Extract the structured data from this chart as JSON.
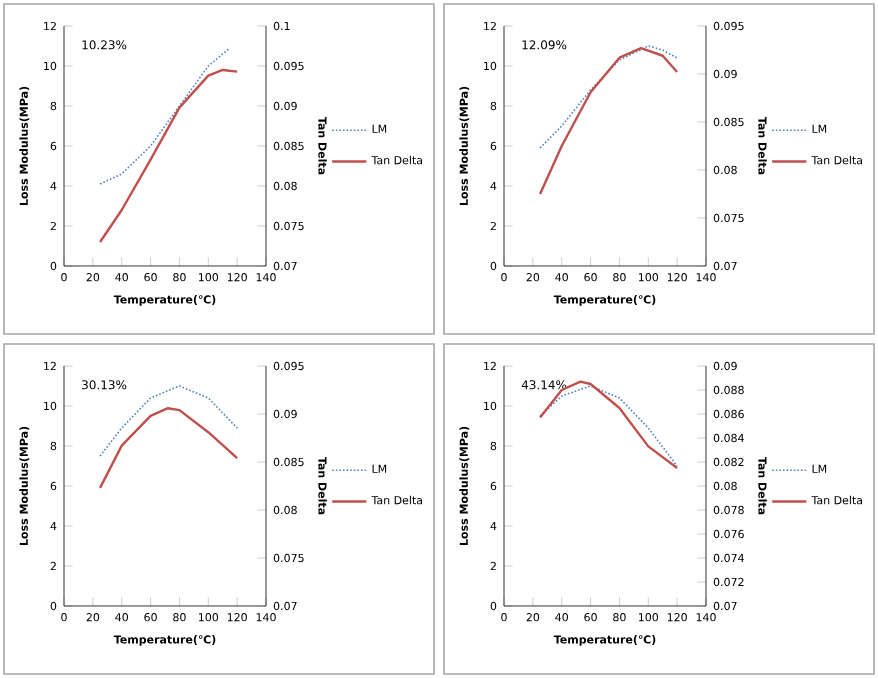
{
  "chart_data": [
    {
      "type": "line",
      "xlabel": "Temperature(℃)",
      "ylabel": "Loss Modulus(MPa)",
      "y2label": "Tan Delta",
      "annotations": [
        "10.23%"
      ],
      "xlim": [
        0,
        140
      ],
      "xticks": [
        0,
        20,
        40,
        60,
        80,
        100,
        120,
        140
      ],
      "ylim": [
        0,
        12
      ],
      "yticks": [
        0,
        2,
        4,
        6,
        8,
        10,
        12
      ],
      "y2lim": [
        0.07,
        0.1
      ],
      "y2ticks": [
        0.07,
        0.075,
        0.08,
        0.085,
        0.09,
        0.095,
        0.1
      ],
      "legend": "right",
      "series": [
        {
          "name": "LM",
          "color": "#4f81bd",
          "line_style": "dotted",
          "x": [
            25,
            40,
            60,
            80,
            100,
            115
          ],
          "values": [
            4.1,
            4.6,
            6.0,
            8.0,
            10.0,
            10.9
          ]
        },
        {
          "name": "Tan Delta",
          "color": "#c0504d",
          "line_style": "solid",
          "axis": "y2",
          "x": [
            25,
            40,
            60,
            80,
            100,
            110,
            120
          ],
          "values": [
            0.073,
            0.077,
            0.0833,
            0.0898,
            0.0938,
            0.0945,
            0.0943
          ]
        }
      ]
    },
    {
      "type": "line",
      "xlabel": "Temperature(℃)",
      "ylabel": "Loss Modulus(MPa)",
      "y2label": "Tan Delta",
      "annotations": [
        "12.09%"
      ],
      "xlim": [
        0,
        140
      ],
      "xticks": [
        0,
        20,
        40,
        60,
        80,
        100,
        120,
        140
      ],
      "ylim": [
        0,
        12
      ],
      "yticks": [
        0,
        2,
        4,
        6,
        8,
        10,
        12
      ],
      "y2lim": [
        0.07,
        0.095
      ],
      "y2ticks": [
        0.07,
        0.075,
        0.08,
        0.085,
        0.09,
        0.095
      ],
      "legend": "right",
      "series": [
        {
          "name": "LM",
          "color": "#4f81bd",
          "line_style": "dotted",
          "x": [
            25,
            40,
            60,
            80,
            100,
            110,
            120
          ],
          "values": [
            5.9,
            7.0,
            8.8,
            10.3,
            11.0,
            10.8,
            10.4
          ]
        },
        {
          "name": "Tan Delta",
          "color": "#c0504d",
          "line_style": "solid",
          "axis": "y2",
          "x": [
            25,
            40,
            60,
            80,
            95,
            110,
            120
          ],
          "values": [
            0.0775,
            0.0825,
            0.0881,
            0.0917,
            0.0927,
            0.0919,
            0.0902
          ]
        }
      ]
    },
    {
      "type": "line",
      "xlabel": "Temperature(℃)",
      "ylabel": "Loss Modulus(MPa)",
      "y2label": "Tan Delta",
      "annotations": [
        "30.13%"
      ],
      "xlim": [
        0,
        140
      ],
      "xticks": [
        0,
        20,
        40,
        60,
        80,
        100,
        120,
        140
      ],
      "ylim": [
        0,
        12
      ],
      "yticks": [
        0,
        2,
        4,
        6,
        8,
        10,
        12
      ],
      "y2lim": [
        0.07,
        0.095
      ],
      "y2ticks": [
        0.07,
        0.075,
        0.08,
        0.085,
        0.09,
        0.095
      ],
      "legend": "right",
      "series": [
        {
          "name": "LM",
          "color": "#4f81bd",
          "line_style": "dotted",
          "x": [
            25,
            40,
            60,
            80,
            100,
            120
          ],
          "values": [
            7.5,
            8.9,
            10.4,
            11.0,
            10.4,
            8.9
          ]
        },
        {
          "name": "Tan Delta",
          "color": "#c0504d",
          "line_style": "solid",
          "axis": "y2",
          "x": [
            25,
            40,
            60,
            72,
            80,
            100,
            120
          ],
          "values": [
            0.0823,
            0.0867,
            0.0898,
            0.0906,
            0.0904,
            0.0881,
            0.0854
          ]
        }
      ]
    },
    {
      "type": "line",
      "xlabel": "Temperature(℃)",
      "ylabel": "Loss Modulus(MPa)",
      "y2label": "Tan Delta",
      "annotations": [
        "43.14%"
      ],
      "xlim": [
        0,
        140
      ],
      "xticks": [
        0,
        20,
        40,
        60,
        80,
        100,
        120,
        140
      ],
      "ylim": [
        0,
        12
      ],
      "yticks": [
        0,
        2,
        4,
        6,
        8,
        10,
        12
      ],
      "y2lim": [
        0.07,
        0.09
      ],
      "y2ticks": [
        0.07,
        0.072,
        0.074,
        0.076,
        0.078,
        0.08,
        0.082,
        0.084,
        0.086,
        0.088,
        0.09
      ],
      "legend": "right",
      "series": [
        {
          "name": "LM",
          "color": "#4f81bd",
          "line_style": "dotted",
          "x": [
            25,
            40,
            60,
            80,
            100,
            120
          ],
          "values": [
            9.5,
            10.5,
            11.0,
            10.4,
            8.9,
            7.0
          ]
        },
        {
          "name": "Tan Delta",
          "color": "#c0504d",
          "line_style": "solid",
          "axis": "y2",
          "x": [
            25,
            40,
            53,
            60,
            80,
            100,
            120
          ],
          "values": [
            0.0857,
            0.088,
            0.0887,
            0.0885,
            0.0865,
            0.0833,
            0.0815
          ]
        }
      ]
    }
  ]
}
